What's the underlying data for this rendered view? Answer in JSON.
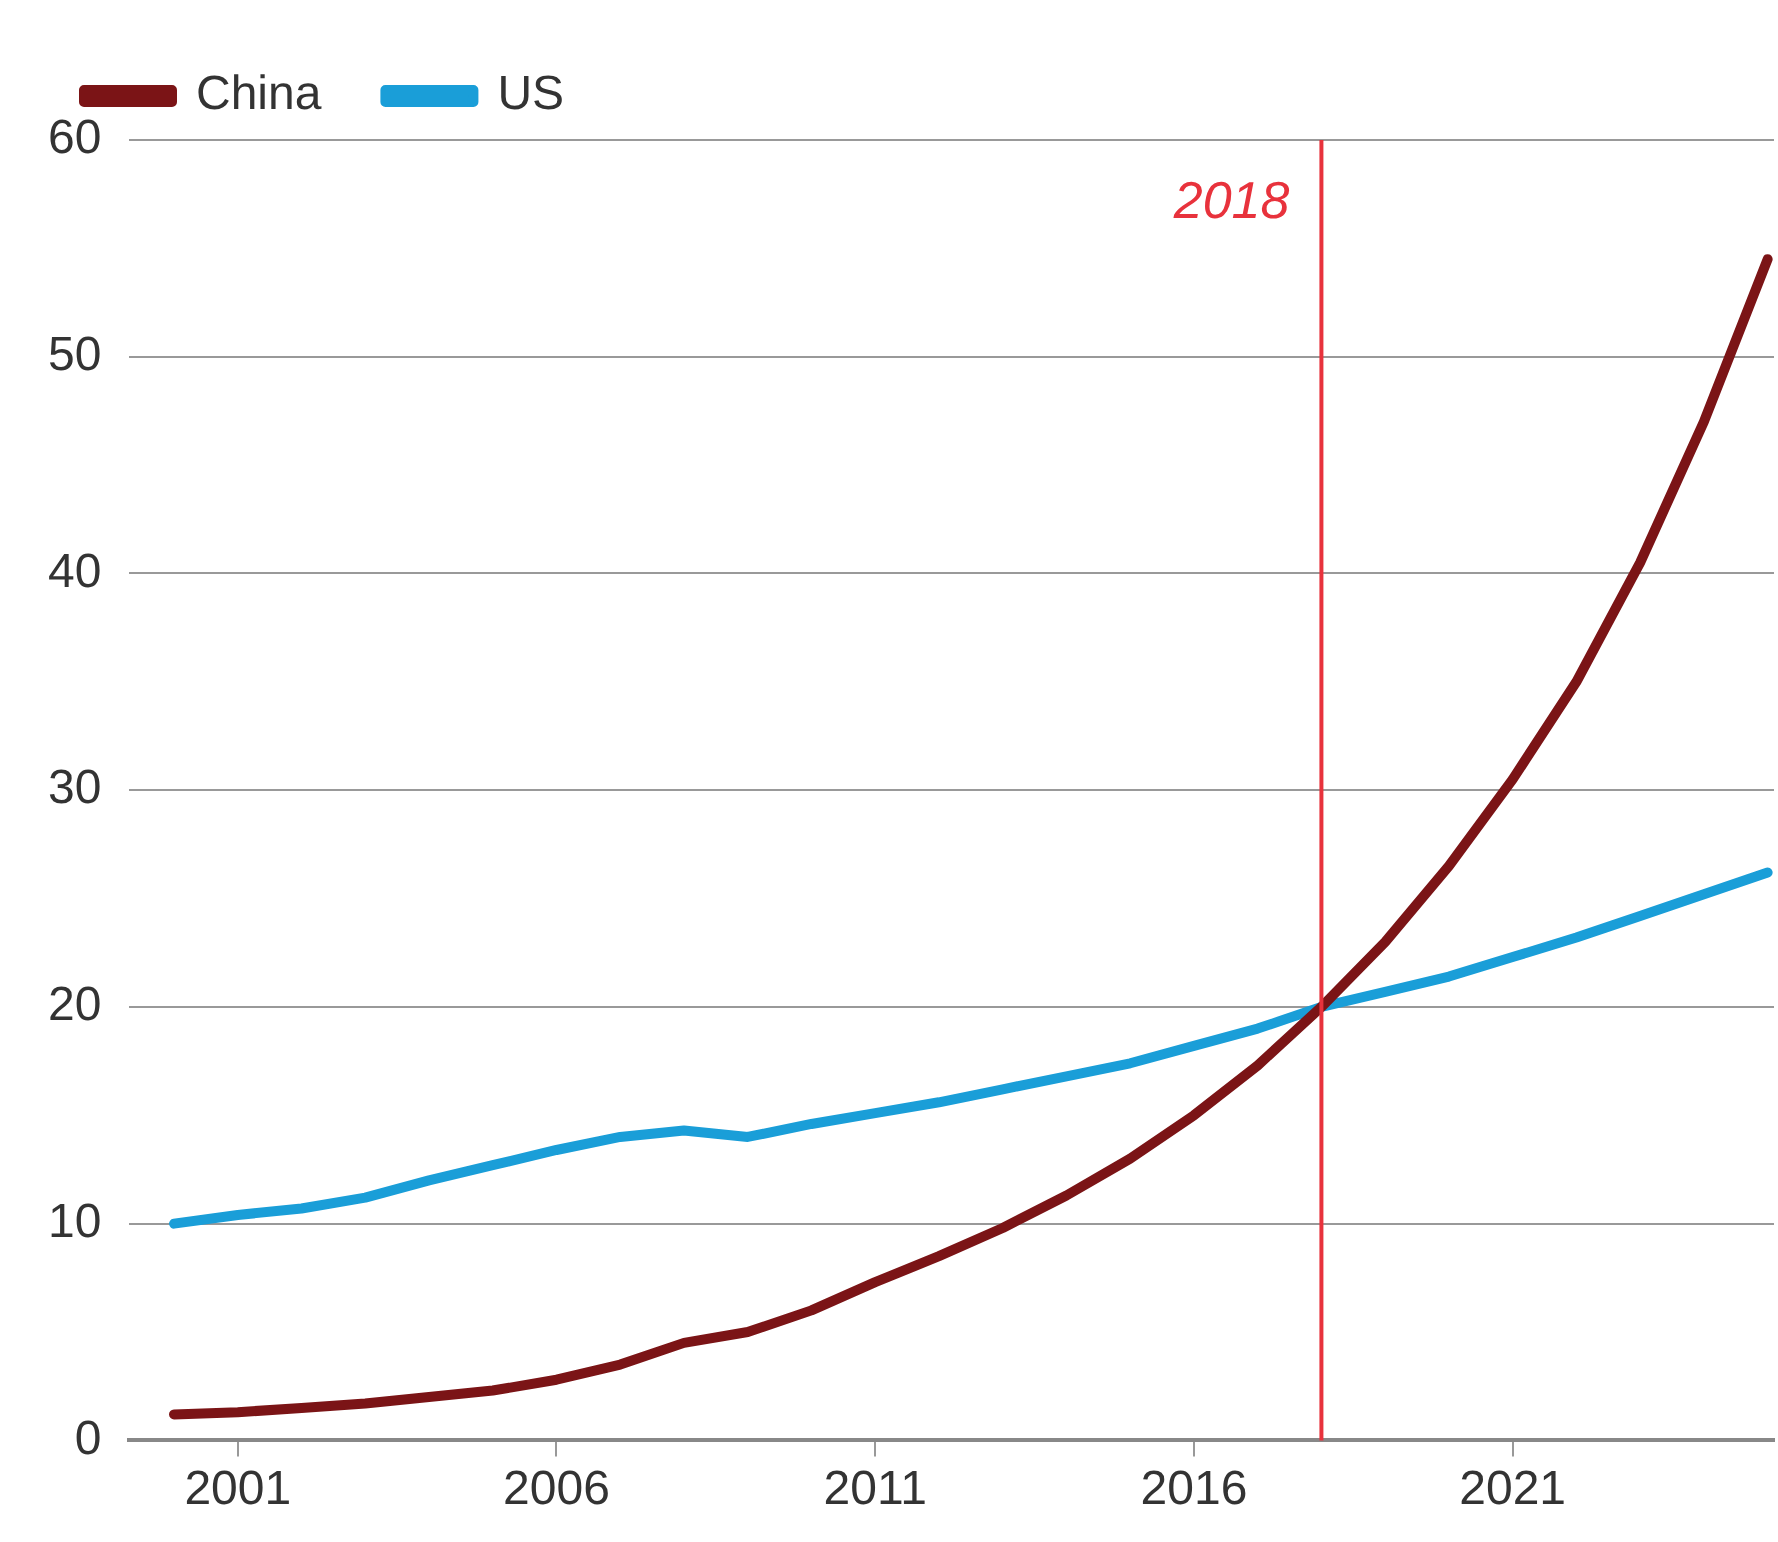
{
  "chart_data": {
    "type": "line",
    "x": [
      2000,
      2001,
      2002,
      2003,
      2004,
      2005,
      2006,
      2007,
      2008,
      2009,
      2010,
      2011,
      2012,
      2013,
      2014,
      2015,
      2016,
      2017,
      2018,
      2019,
      2020,
      2021,
      2022,
      2023,
      2024,
      2025
    ],
    "series": [
      {
        "name": "China",
        "color": "#7b1416",
        "values": [
          1.2,
          1.3,
          1.5,
          1.7,
          2.0,
          2.3,
          2.8,
          3.5,
          4.5,
          5.0,
          6.0,
          7.3,
          8.5,
          9.8,
          11.3,
          13.0,
          15.0,
          17.3,
          20.0,
          23.0,
          26.5,
          30.5,
          35.0,
          40.5,
          47.0,
          54.5
        ]
      },
      {
        "name": "US",
        "color": "#1a9ed8",
        "values": [
          10.0,
          10.4,
          10.7,
          11.2,
          12.0,
          12.7,
          13.4,
          14.0,
          14.3,
          14.0,
          14.6,
          15.1,
          15.6,
          16.2,
          16.8,
          17.4,
          18.2,
          19.0,
          20.0,
          20.7,
          21.4,
          22.3,
          23.2,
          24.2,
          25.2,
          26.2
        ]
      }
    ],
    "xlim": [
      1999.3,
      2025.1
    ],
    "xticks": [
      2001,
      2006,
      2011,
      2016,
      2021
    ],
    "ylim": [
      0,
      60
    ],
    "yticks": [
      0,
      10,
      20,
      30,
      40,
      50,
      60
    ],
    "grid": "y",
    "legend": "top left",
    "marker": "none",
    "line_style": "solid",
    "ref_lines": [
      {
        "axis": "x",
        "value": 2018,
        "label": "2018",
        "color": "#e8323c"
      }
    ]
  }
}
